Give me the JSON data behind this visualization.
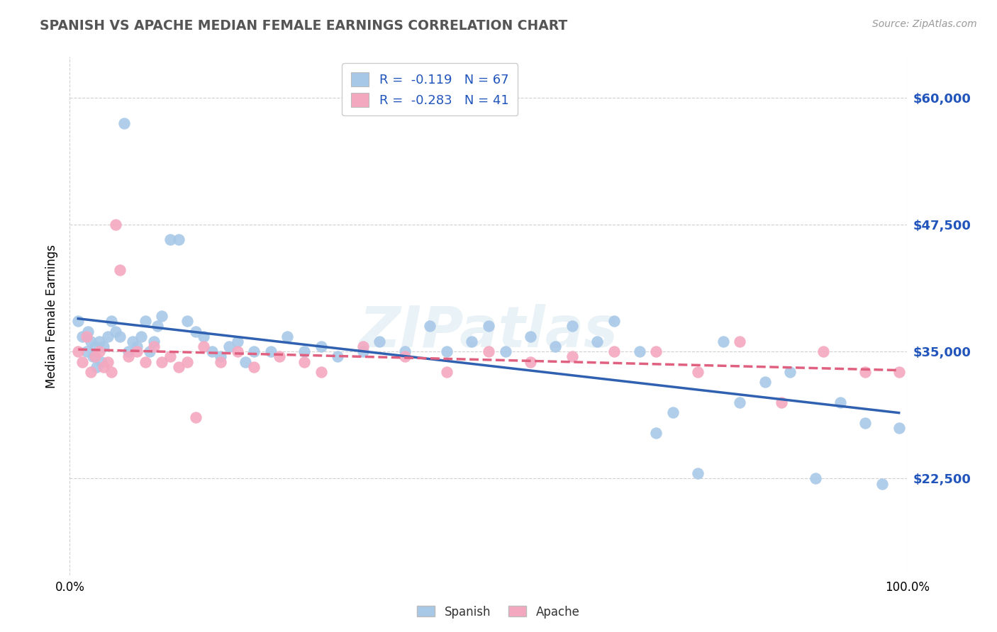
{
  "title": "SPANISH VS APACHE MEDIAN FEMALE EARNINGS CORRELATION CHART",
  "source": "Source: ZipAtlas.com",
  "ylabel": "Median Female Earnings",
  "xlim": [
    0.0,
    100.0
  ],
  "ylim": [
    13000,
    64000
  ],
  "yticks": [
    22500,
    35000,
    47500,
    60000
  ],
  "ytick_labels": [
    "$22,500",
    "$35,000",
    "$47,500",
    "$60,000"
  ],
  "background_color": "#ffffff",
  "grid_color": "#d0d0d0",
  "spanish_color": "#a8c8e8",
  "apache_color": "#f4a8c0",
  "spanish_line_color": "#3060b0",
  "apache_line_color": "#e06080",
  "R_spanish": -0.119,
  "N_spanish": 67,
  "R_apache": -0.283,
  "N_apache": 41,
  "legend_label_spanish": "Spanish",
  "legend_label_apache": "Apache",
  "watermark": "ZIPatlas",
  "spanish_x": [
    1.0,
    1.5,
    2.0,
    2.2,
    2.5,
    2.8,
    3.0,
    3.2,
    3.5,
    3.8,
    4.0,
    4.5,
    5.0,
    5.5,
    6.0,
    6.5,
    7.0,
    7.5,
    8.0,
    8.5,
    9.0,
    9.5,
    10.0,
    10.5,
    11.0,
    12.0,
    13.0,
    14.0,
    15.0,
    16.0,
    17.0,
    18.0,
    19.0,
    20.0,
    21.0,
    22.0,
    24.0,
    26.0,
    28.0,
    30.0,
    32.0,
    35.0,
    37.0,
    40.0,
    43.0,
    45.0,
    48.0,
    50.0,
    52.0,
    55.0,
    58.0,
    60.0,
    63.0,
    65.0,
    68.0,
    70.0,
    72.0,
    75.0,
    78.0,
    80.0,
    83.0,
    86.0,
    89.0,
    92.0,
    95.0,
    97.0,
    99.0
  ],
  "spanish_y": [
    38000,
    36500,
    35000,
    37000,
    36000,
    34500,
    35500,
    33500,
    36000,
    34000,
    35500,
    36500,
    38000,
    37000,
    36500,
    57500,
    35000,
    36000,
    35500,
    36500,
    38000,
    35000,
    36000,
    37500,
    38500,
    46000,
    46000,
    38000,
    37000,
    36500,
    35000,
    34500,
    35500,
    36000,
    34000,
    35000,
    35000,
    36500,
    35000,
    35500,
    34500,
    35000,
    36000,
    35000,
    37500,
    35000,
    36000,
    37500,
    35000,
    36500,
    35500,
    37500,
    36000,
    38000,
    35000,
    27000,
    29000,
    23000,
    36000,
    30000,
    32000,
    33000,
    22500,
    30000,
    28000,
    22000,
    27500
  ],
  "apache_x": [
    1.0,
    1.5,
    2.0,
    2.5,
    3.0,
    3.5,
    4.0,
    4.5,
    5.0,
    5.5,
    6.0,
    7.0,
    8.0,
    9.0,
    10.0,
    11.0,
    12.0,
    13.0,
    14.0,
    15.0,
    16.0,
    18.0,
    20.0,
    22.0,
    25.0,
    28.0,
    30.0,
    35.0,
    40.0,
    45.0,
    50.0,
    55.0,
    60.0,
    65.0,
    70.0,
    75.0,
    80.0,
    85.0,
    90.0,
    95.0,
    99.0
  ],
  "apache_y": [
    35000,
    34000,
    36500,
    33000,
    34500,
    35000,
    33500,
    34000,
    33000,
    47500,
    43000,
    34500,
    35000,
    34000,
    35500,
    34000,
    34500,
    33500,
    34000,
    28500,
    35500,
    34000,
    35000,
    33500,
    34500,
    34000,
    33000,
    35500,
    34500,
    33000,
    35000,
    34000,
    34500,
    35000,
    35000,
    33000,
    36000,
    30000,
    35000,
    33000,
    33000
  ]
}
